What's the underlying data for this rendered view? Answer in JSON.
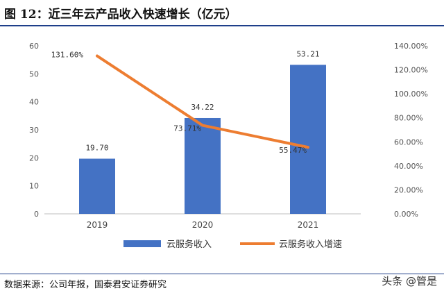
{
  "header": {
    "title": "图 12：近三年云产品收入快速增长（亿元）"
  },
  "footer": {
    "source": "数据来源：公司年报，国泰君安证券研究",
    "watermark": "头条 @管是"
  },
  "colors": {
    "bar": "#4472c4",
    "line": "#ed7d31",
    "rule": "#1e3f8a"
  },
  "chart_data": {
    "type": "bar",
    "categories": [
      "2019",
      "2020",
      "2021"
    ],
    "series": [
      {
        "name": "云服务收入",
        "type": "bar",
        "axis": "left",
        "values": [
          19.7,
          34.22,
          53.21
        ],
        "labels": [
          "19.70",
          "34.22",
          "53.21"
        ]
      },
      {
        "name": "云服务收入增速",
        "type": "line",
        "axis": "right",
        "values": [
          131.6,
          73.71,
          55.47
        ],
        "labels": [
          "131.60%",
          "73.71%",
          "55.47%"
        ]
      }
    ],
    "y_left": {
      "ylim": [
        0,
        60
      ],
      "ticks": [
        "0",
        "10",
        "20",
        "30",
        "40",
        "50",
        "60"
      ]
    },
    "y_right": {
      "ylim": [
        0,
        140
      ],
      "ticks": [
        "0.00%",
        "20.00%",
        "40.00%",
        "60.00%",
        "80.00%",
        "100.00%",
        "120.00%",
        "140.00%"
      ]
    },
    "grid": false,
    "legend": "bottom"
  }
}
